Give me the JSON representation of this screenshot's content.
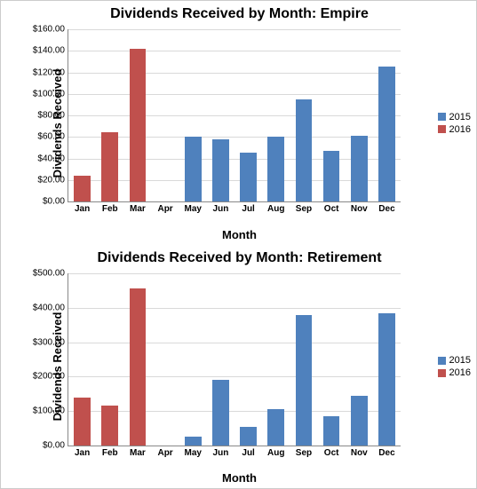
{
  "charts": [
    {
      "title": "Dividends Received by Month: Empire",
      "ylabel": "Dividends Received",
      "xlabel": "Month",
      "type": "bar",
      "ylim": [
        0,
        160
      ],
      "ytick_step": 20,
      "title_fontsize": 16,
      "label_fontsize": 13,
      "tick_fontsize": 10,
      "background_color": "#ffffff",
      "grid_color": "#d9d9d9",
      "plot_border_color": "#888888",
      "categories": [
        "Jan",
        "Feb",
        "Mar",
        "Apr",
        "May",
        "Jun",
        "Jul",
        "Aug",
        "Sep",
        "Oct",
        "Nov",
        "Dec"
      ],
      "series": [
        {
          "name": "2015",
          "color": "#4f81bd",
          "values": [
            null,
            null,
            null,
            null,
            60,
            58,
            45,
            60,
            95,
            47,
            61,
            125
          ]
        },
        {
          "name": "2016",
          "color": "#c0504d",
          "values": [
            24,
            64,
            142,
            null,
            null,
            null,
            null,
            null,
            null,
            null,
            null,
            null
          ]
        }
      ]
    },
    {
      "title": "Dividends Received by Month: Retirement",
      "ylabel": "Dividends Received",
      "xlabel": "Month",
      "type": "bar",
      "ylim": [
        0,
        500
      ],
      "ytick_step": 100,
      "title_fontsize": 16,
      "label_fontsize": 13,
      "tick_fontsize": 10,
      "background_color": "#ffffff",
      "grid_color": "#d9d9d9",
      "plot_border_color": "#888888",
      "categories": [
        "Jan",
        "Feb",
        "Mar",
        "Apr",
        "May",
        "Jun",
        "Jul",
        "Aug",
        "Sep",
        "Oct",
        "Nov",
        "Dec"
      ],
      "series": [
        {
          "name": "2015",
          "color": "#4f81bd",
          "values": [
            null,
            null,
            null,
            null,
            25,
            192,
            55,
            105,
            380,
            85,
            145,
            385
          ]
        },
        {
          "name": "2016",
          "color": "#c0504d",
          "values": [
            138,
            117,
            455,
            null,
            null,
            null,
            null,
            null,
            null,
            null,
            null,
            null
          ]
        }
      ]
    }
  ]
}
